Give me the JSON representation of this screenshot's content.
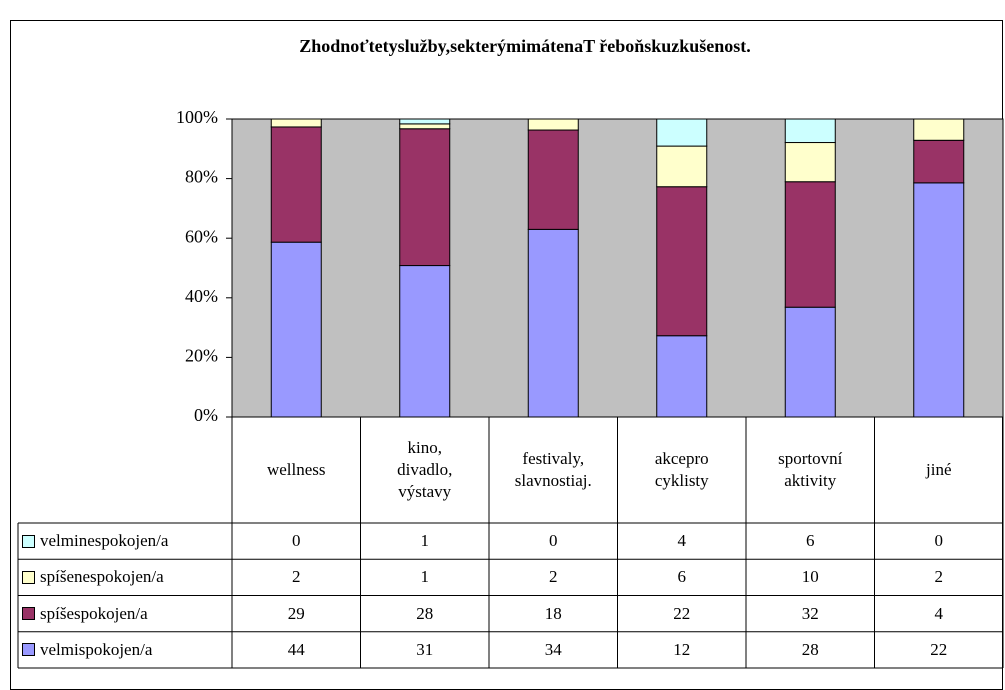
{
  "chart_data": {
    "type": "bar",
    "stacking": "percent",
    "title": "Zhodnoťtetyslužby,sekterýmimátenaT řeboňskuzkušenost.",
    "categories": [
      "wellness",
      "kino, divadlo, výstavy",
      "festivaly, slavnostiaj.",
      "akcepro cyklisty",
      "sportovní aktivity",
      "jiné"
    ],
    "series": [
      {
        "name": "velminespokojen/a",
        "color": "#ccffff",
        "values": [
          0,
          1,
          0,
          4,
          6,
          0
        ]
      },
      {
        "name": "spíšenespokojen/a",
        "color": "#ffffcc",
        "values": [
          2,
          1,
          2,
          6,
          10,
          2
        ]
      },
      {
        "name": "spíšespokojen/a",
        "color": "#993366",
        "values": [
          29,
          28,
          18,
          22,
          32,
          4
        ]
      },
      {
        "name": "velmispokojen/a",
        "color": "#9999ff",
        "values": [
          44,
          31,
          34,
          12,
          28,
          22
        ]
      }
    ],
    "ylim": [
      0,
      100
    ],
    "yticks": [
      {
        "value": 0,
        "label": "0%"
      },
      {
        "value": 20,
        "label": "20%"
      },
      {
        "value": 40,
        "label": "40%"
      },
      {
        "value": 60,
        "label": "60%"
      },
      {
        "value": 80,
        "label": "80%"
      },
      {
        "value": 100,
        "label": "100%"
      }
    ],
    "plot_background": "#c0c0c0",
    "data_table": true
  }
}
